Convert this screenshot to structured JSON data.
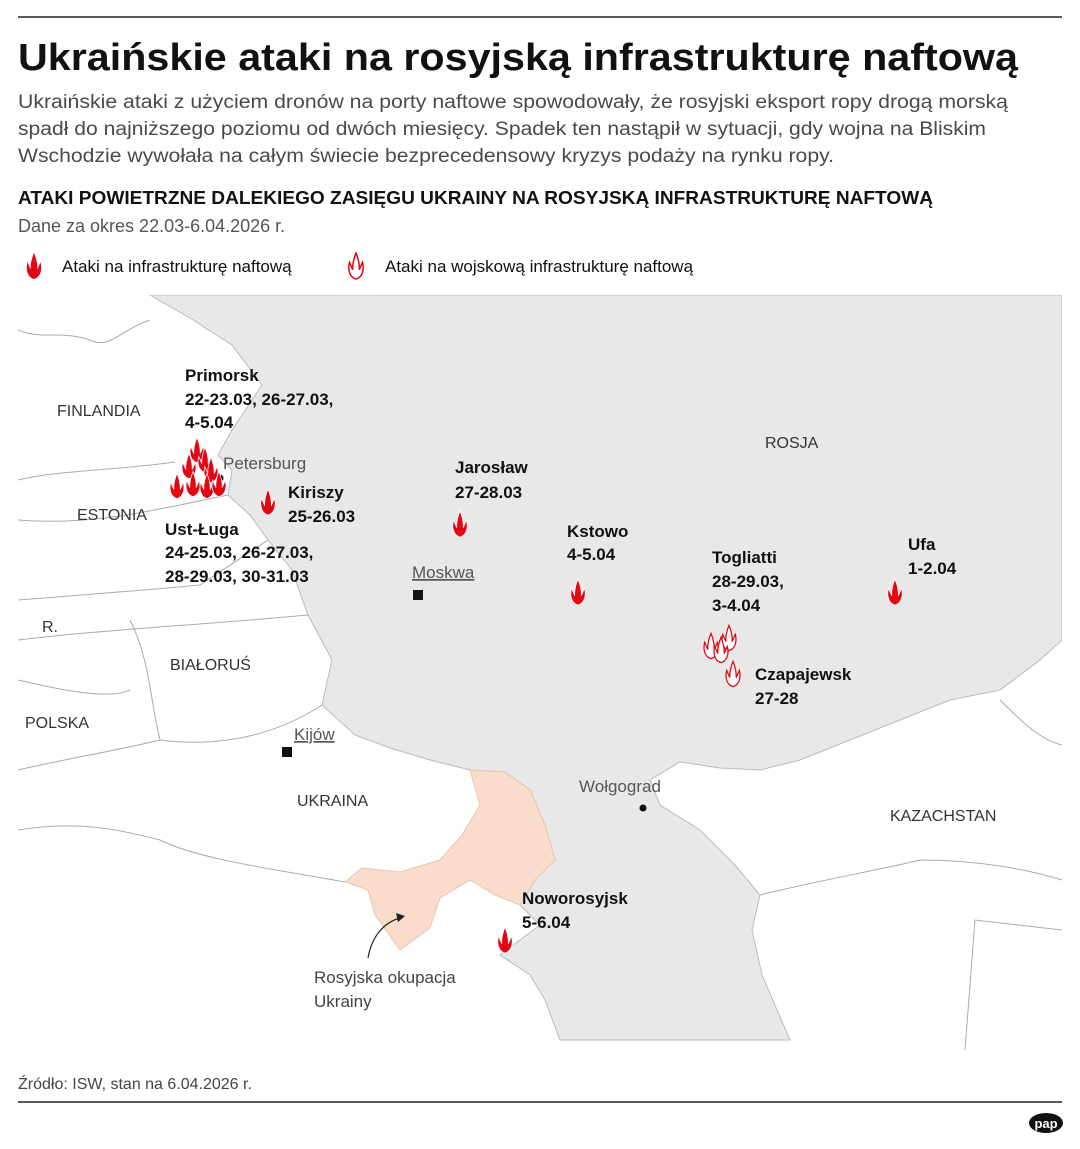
{
  "header": {
    "title": "Ukraińskie ataki na rosyjską infrastrukturę naftową",
    "subtitle": [
      "Ukraińskie ataki z użyciem dronów na porty naftowe spowodowały, że rosyjski eksport ropy drogą morską",
      "spadł do najniższego poziomu od dwóch miesięcy. Spadek ten nastąpił w sytuacji, gdy wojna na Bliskim",
      "Wschodzie wywołała na całym świecie bezprecedensowy kryzys podaży na rynku ropy."
    ]
  },
  "section": {
    "title": "ATAKI POWIETRZNE DALEKIEGO ZASIĘGU UKRAINY NA ROSYJSKĄ INFRASTRUKTURĘ NAFTOWĄ",
    "date_range": "Dane za okres 22.03-6.04.2026 r."
  },
  "legend": {
    "items": [
      "Ataki na infrastrukturę naftową",
      "Ataki na wojskową infrastrukturę naftową"
    ]
  },
  "map": {
    "countries": [
      "FINLANDIA",
      "ESTONIA",
      "R.",
      "BIAŁORUŚ",
      "POLSKA",
      "UKRAINA",
      "ROSJA",
      "KAZACHSTAN"
    ],
    "cities": [
      "Petersburg",
      "Moskwa",
      "Kijów",
      "Wołgograd"
    ],
    "attacks": [
      {
        "name": "Primorsk",
        "dates": [
          "22-23.03, 26-27.03,",
          "4-5.04"
        ]
      },
      {
        "name": "Kiriszy",
        "dates": [
          "25-26.03"
        ]
      },
      {
        "name": "Ust-Ługa",
        "dates": [
          "24-25.03, 26-27.03,",
          "28-29.03, 30-31.03"
        ]
      },
      {
        "name": "Jarosław",
        "dates": [
          "27-28.03"
        ]
      },
      {
        "name": "Kstowo",
        "dates": [
          "4-5.04"
        ]
      },
      {
        "name": "Togliatti",
        "dates": [
          "28-29.03,",
          "3-4.04"
        ]
      },
      {
        "name": "Ufa",
        "dates": [
          "1-2.04"
        ]
      },
      {
        "name": "Czapajewsk",
        "dates": [
          "27-28"
        ]
      },
      {
        "name": "Noworosyjsk",
        "dates": [
          "5-6.04"
        ]
      }
    ],
    "occupation_label": [
      "Rosyjska okupacja",
      "Ukrainy"
    ]
  },
  "footer": {
    "source": "Źródło: ISW, stan na 6.04.2026 r.",
    "logo": "pap"
  }
}
